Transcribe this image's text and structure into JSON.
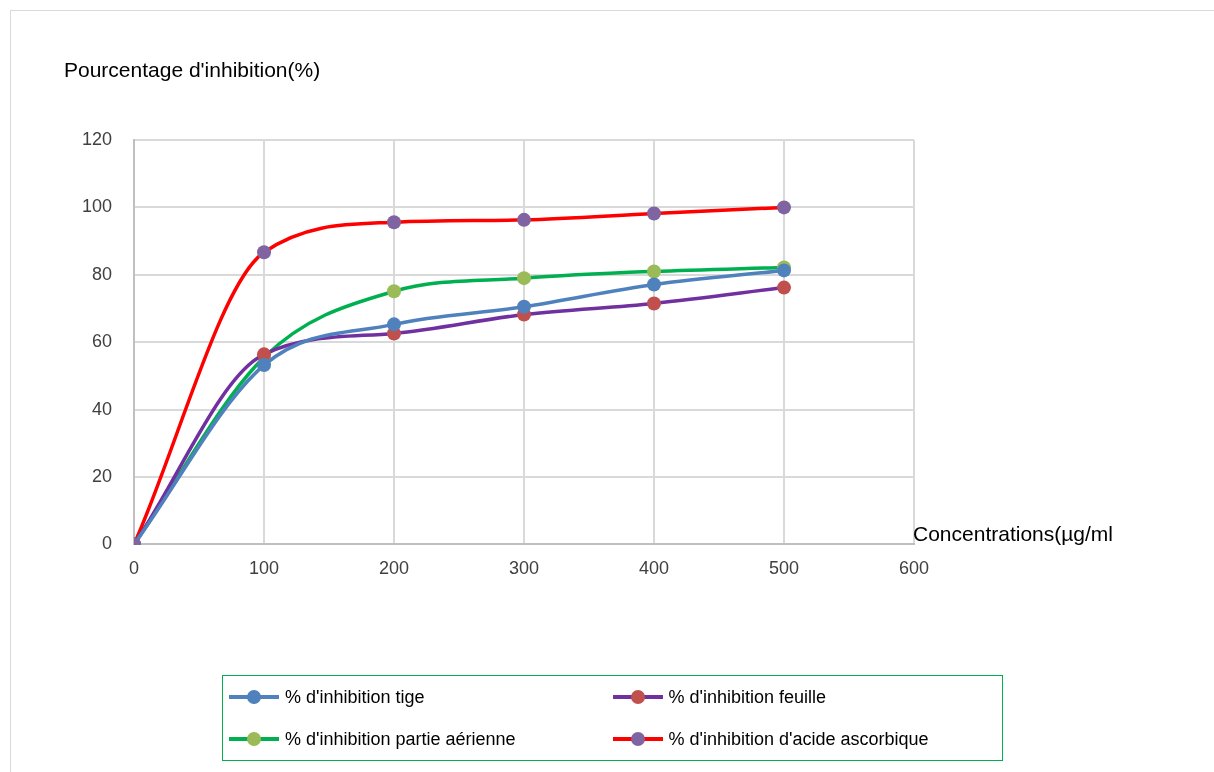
{
  "chart_data": {
    "type": "line",
    "ylabel": "Pourcentage d'inhibition(%)",
    "xlabel": "Concentrations(µg/ml",
    "x": [
      0,
      100,
      200,
      300,
      400,
      500
    ],
    "xlim": [
      0,
      600
    ],
    "xticks": [
      0,
      100,
      200,
      300,
      400,
      500,
      600
    ],
    "ylim": [
      0,
      120
    ],
    "yticks": [
      0,
      20,
      40,
      60,
      80,
      100,
      120
    ],
    "grid": true,
    "legend": "bottom",
    "marker": "circle",
    "series": [
      {
        "name": "% d'inhibition tige",
        "color": "#4f81bd",
        "colors": [
          "#8064a2",
          "#4f81bd",
          "#4f81bd",
          "#4f81bd",
          "#4f81bd",
          "#4f81bd"
        ],
        "values": [
          0,
          53.2,
          65.3,
          70.5,
          77.1,
          81.3
        ]
      },
      {
        "name": "% d'inhibition feuille",
        "color": "#7030a0",
        "colors": [
          "#8064a2",
          "#c0504d",
          "#c0504d",
          "#c0504d",
          "#c0504d",
          "#c0504d"
        ],
        "values": [
          0,
          56.4,
          62.6,
          68.2,
          71.5,
          76.2
        ]
      },
      {
        "name": "% d'inhibition partie aérienne",
        "color": "#00b050",
        "colors": [
          "#8064a2",
          "#9bbb59",
          "#9bbb59",
          "#9bbb59",
          "#9bbb59",
          "#9bbb59"
        ],
        "values": [
          0,
          55.5,
          75.1,
          79,
          81,
          82.2
        ]
      },
      {
        "name": "% d'inhibition d'acide ascorbique",
        "color": "#ff0000",
        "colors": [
          "#8064a2",
          "#8064a2",
          "#8064a2",
          "#8064a2",
          "#8064a2",
          "#8064a2"
        ],
        "values": [
          0,
          86.7,
          95.6,
          96.3,
          98.2,
          100
        ]
      }
    ]
  }
}
